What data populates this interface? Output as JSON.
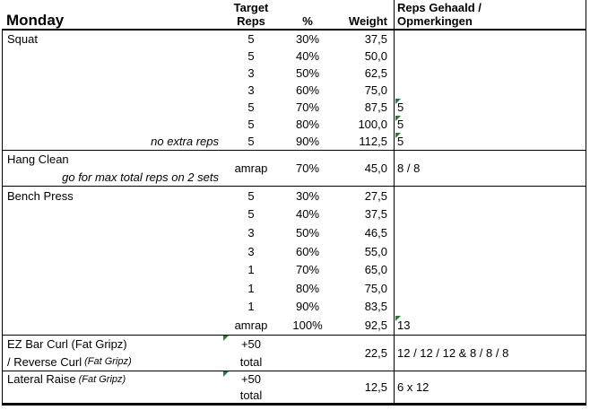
{
  "colors": {
    "background": "#ffffff",
    "text": "#000000",
    "grid": "#000000",
    "flag_green": "#1f7d34"
  },
  "header": {
    "day": "Monday",
    "target_line1": "Target",
    "target_line2": "Reps",
    "percent": "%",
    "weight": "Weight",
    "results_line1": "Reps Gehaald /",
    "results_line2": "Opmerkingen"
  },
  "squat": {
    "name": "Squat",
    "note": "no extra reps",
    "rows": [
      {
        "reps": "5",
        "pct": "30%",
        "weight": "37,5",
        "result": ""
      },
      {
        "reps": "5",
        "pct": "40%",
        "weight": "50,0",
        "result": ""
      },
      {
        "reps": "3",
        "pct": "50%",
        "weight": "62,5",
        "result": ""
      },
      {
        "reps": "3",
        "pct": "60%",
        "weight": "75,0",
        "result": ""
      },
      {
        "reps": "5",
        "pct": "70%",
        "weight": "87,5",
        "result": "5"
      },
      {
        "reps": "5",
        "pct": "80%",
        "weight": "100,0",
        "result": "5"
      },
      {
        "reps": "5",
        "pct": "90%",
        "weight": "112,5",
        "result": "5"
      }
    ]
  },
  "hang_clean": {
    "name": "Hang Clean",
    "note": "go for max total reps on 2 sets",
    "reps": "amrap",
    "pct": "70%",
    "weight": "45,0",
    "result": "8 / 8"
  },
  "bench_press": {
    "name": "Bench Press",
    "rows": [
      {
        "reps": "5",
        "pct": "30%",
        "weight": "27,5",
        "result": ""
      },
      {
        "reps": "5",
        "pct": "40%",
        "weight": "37,5",
        "result": ""
      },
      {
        "reps": "3",
        "pct": "50%",
        "weight": "46,5",
        "result": ""
      },
      {
        "reps": "3",
        "pct": "60%",
        "weight": "55,0",
        "result": ""
      },
      {
        "reps": "1",
        "pct": "70%",
        "weight": "65,0",
        "result": ""
      },
      {
        "reps": "1",
        "pct": "80%",
        "weight": "75,0",
        "result": ""
      },
      {
        "reps": "1",
        "pct": "90%",
        "weight": "83,5",
        "result": ""
      },
      {
        "reps": "amrap",
        "pct": "100%",
        "weight": "92,5",
        "result": "13"
      }
    ]
  },
  "ez_curl": {
    "name_line1": "EZ Bar Curl (Fat Gripz)",
    "name_line2_text": "/ Reverse Curl",
    "name_line2_italic": "(Fat Gripz)",
    "reps_line1": "+50",
    "reps_line2": "total",
    "weight": "22,5",
    "result": "12 / 12 / 12 & 8 / 8 / 8"
  },
  "lateral_raise": {
    "name_text": "Lateral Raise",
    "name_italic": "(Fat Gripz)",
    "reps_line1": "+50",
    "reps_line2": "total",
    "weight": "12,5",
    "result": "6 x 12"
  }
}
